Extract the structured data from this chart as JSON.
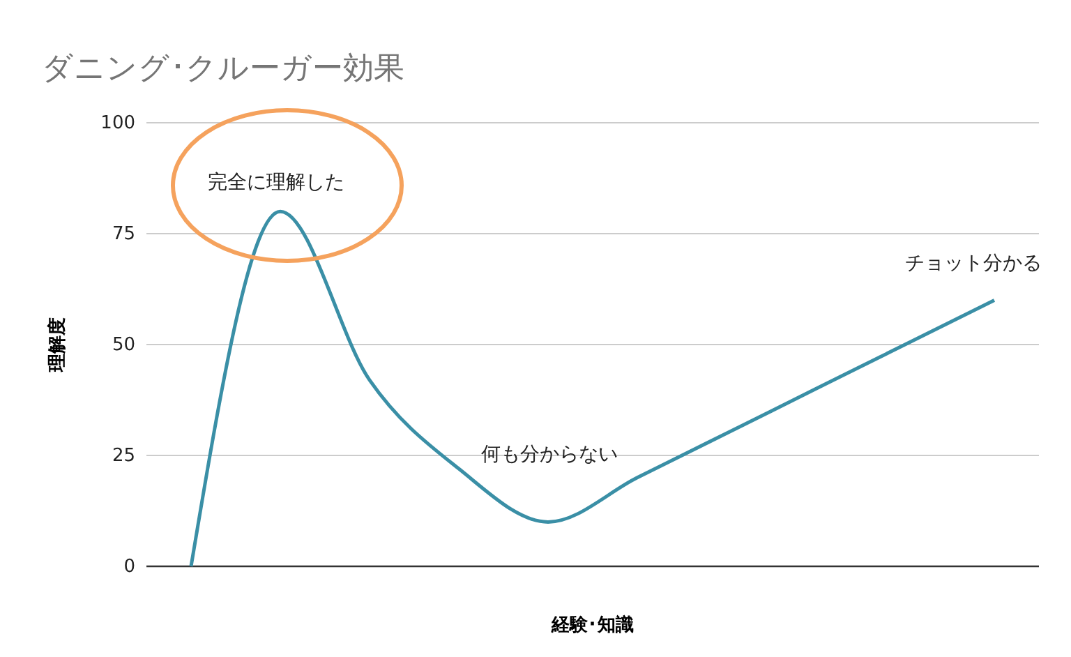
{
  "chart_data": {
    "type": "line",
    "title": "ダニング･クルーガー効果",
    "xlabel": "経験･知識",
    "ylabel": "理解度",
    "categories": [
      null,
      null,
      null,
      null,
      null,
      null,
      null,
      null,
      null,
      null
    ],
    "series": [
      {
        "color": "#3a8fa6",
        "values": [
          0,
          80,
          42,
          22,
          10,
          20,
          30,
          40,
          50,
          60
        ]
      }
    ],
    "ylim": [
      0,
      100
    ],
    "yticks": [
      0,
      25,
      50,
      75,
      100
    ],
    "grid": "y",
    "marker": "none",
    "line_style": "solid",
    "annotations": [
      "完全に理解した",
      "何も分からない",
      "チョット分かる"
    ]
  }
}
